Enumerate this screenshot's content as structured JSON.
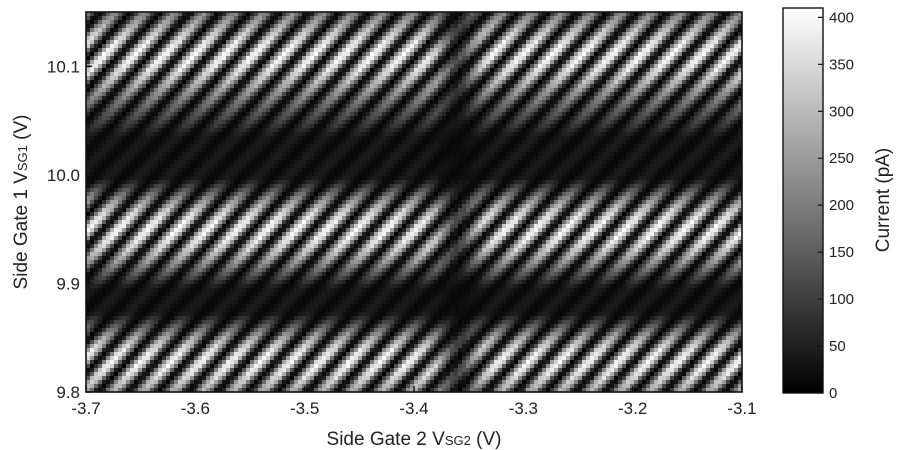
{
  "chart_data": {
    "type": "heatmap",
    "xlabel": "Side Gate 2 V",
    "xlabel_subscript": "SG2",
    "xlabel_unit": " (V)",
    "ylabel": "Side Gate 1 V",
    "ylabel_subscript": "SG1",
    "ylabel_unit": " (V)",
    "xlim": [
      -3.7,
      -3.1
    ],
    "ylim": [
      9.8,
      10.15
    ],
    "x_ticks": [
      -3.7,
      -3.6,
      -3.5,
      -3.4,
      -3.3,
      -3.2,
      -3.1
    ],
    "x_tick_labels": [
      "-3.7",
      "-3.6",
      "-3.5",
      "-3.4",
      "-3.3",
      "-3.2",
      "-3.1"
    ],
    "y_ticks": [
      9.8,
      9.9,
      10.0,
      10.1
    ],
    "y_tick_labels": [
      "9.8",
      "9.9",
      "10.0",
      "10.1"
    ],
    "colorbar": {
      "label": "Current (pA)",
      "range": [
        0,
        410
      ],
      "ticks": [
        0,
        50,
        100,
        150,
        200,
        250,
        300,
        350,
        400
      ],
      "tick_labels": [
        "0",
        "50",
        "100",
        "150",
        "200",
        "250",
        "300",
        "350",
        "400"
      ],
      "colormap": "grayscale",
      "low_color": "#000000",
      "high_color": "#ffffff"
    },
    "pattern": {
      "stripe_count_across_x": 22,
      "stripe_orientation": "diagonal, running from upper-left to lower-right",
      "bright_bands_y": [
        10.11,
        9.95,
        9.83
      ],
      "dark_bands_y": [
        10.01,
        9.88
      ],
      "dark_vertical_column_x": -3.36
    },
    "grid": false,
    "legend": "none"
  }
}
